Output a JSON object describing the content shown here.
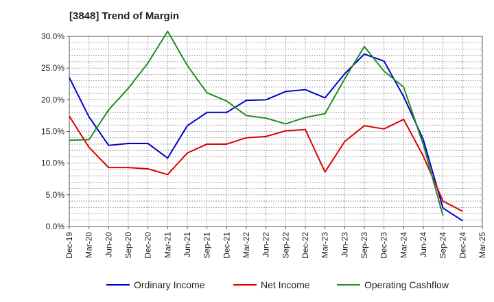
{
  "chart_data": {
    "type": "line",
    "title": "[3848]  Trend of Margin",
    "xlabel": "",
    "ylabel": "",
    "categories": [
      "Dec-19",
      "Mar-20",
      "Jun-20",
      "Sep-20",
      "Dec-20",
      "Mar-21",
      "Jun-21",
      "Sep-21",
      "Dec-21",
      "Mar-22",
      "Jun-22",
      "Sep-22",
      "Dec-22",
      "Mar-23",
      "Jun-23",
      "Sep-23",
      "Dec-23",
      "Mar-24",
      "Jun-24",
      "Sep-24",
      "Dec-24",
      "Mar-25"
    ],
    "ylim": [
      0,
      30
    ],
    "yticks": [
      0,
      5,
      10,
      15,
      20,
      25,
      30
    ],
    "ytick_labels": [
      "0.0%",
      "5.0%",
      "10.0%",
      "15.0%",
      "20.0%",
      "25.0%",
      "30.0%"
    ],
    "grid": true,
    "legend_position": "bottom",
    "series": [
      {
        "name": "Ordinary Income",
        "color": "#0000cc",
        "values": [
          23.5,
          17.3,
          12.8,
          13.1,
          13.1,
          10.8,
          15.9,
          18.0,
          18.0,
          19.9,
          20.0,
          21.3,
          21.6,
          20.3,
          24.1,
          27.2,
          26.1,
          20.5,
          13.7,
          2.9,
          0.9,
          null
        ]
      },
      {
        "name": "Net Income",
        "color": "#dd0000",
        "values": [
          17.4,
          12.5,
          9.3,
          9.3,
          9.1,
          8.2,
          11.6,
          13.0,
          13.0,
          14.0,
          14.2,
          15.1,
          15.3,
          8.6,
          13.4,
          15.9,
          15.4,
          16.9,
          11.1,
          4.0,
          2.4,
          null
        ]
      },
      {
        "name": "Operating Cashflow",
        "color": "#228b22",
        "values": [
          13.6,
          13.7,
          18.4,
          21.8,
          25.8,
          30.8,
          25.4,
          21.1,
          19.8,
          17.5,
          17.1,
          16.2,
          17.2,
          17.8,
          23.3,
          28.4,
          24.5,
          22.0,
          12.9,
          1.7,
          null,
          null
        ]
      }
    ]
  }
}
